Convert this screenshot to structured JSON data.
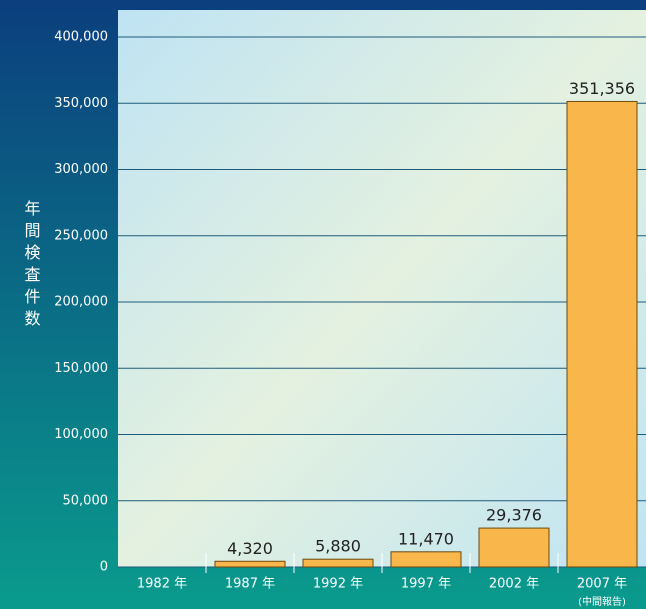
{
  "chart_data": {
    "type": "bar",
    "y_label": "年間検査件数",
    "categories": [
      "1982 年",
      "1987 年",
      "1992 年",
      "1997 年",
      "2002 年",
      "2007 年"
    ],
    "annotation": "(中間報告)",
    "values": [
      null,
      4320,
      5880,
      11470,
      29376,
      351356
    ],
    "value_labels": [
      null,
      "4,320",
      "5,880",
      "11,470",
      "29,376",
      "351,356"
    ],
    "color": "#f9b64a",
    "ylim": [
      0,
      400000
    ],
    "yticks": [
      0,
      {
        "value": 50000,
        "label": "50,000"
      },
      {
        "value": 100000,
        "label": "100,000"
      },
      {
        "value": 150000,
        "label": "150,000"
      },
      {
        "value": 200000,
        "label": "200,000"
      },
      {
        "value": 250000,
        "label": "250,000"
      },
      {
        "value": 300000,
        "label": "300,000"
      },
      {
        "value": 350000,
        "label": "350,000"
      },
      {
        "value": 400000,
        "label": "400,000"
      }
    ],
    "grid": true
  }
}
